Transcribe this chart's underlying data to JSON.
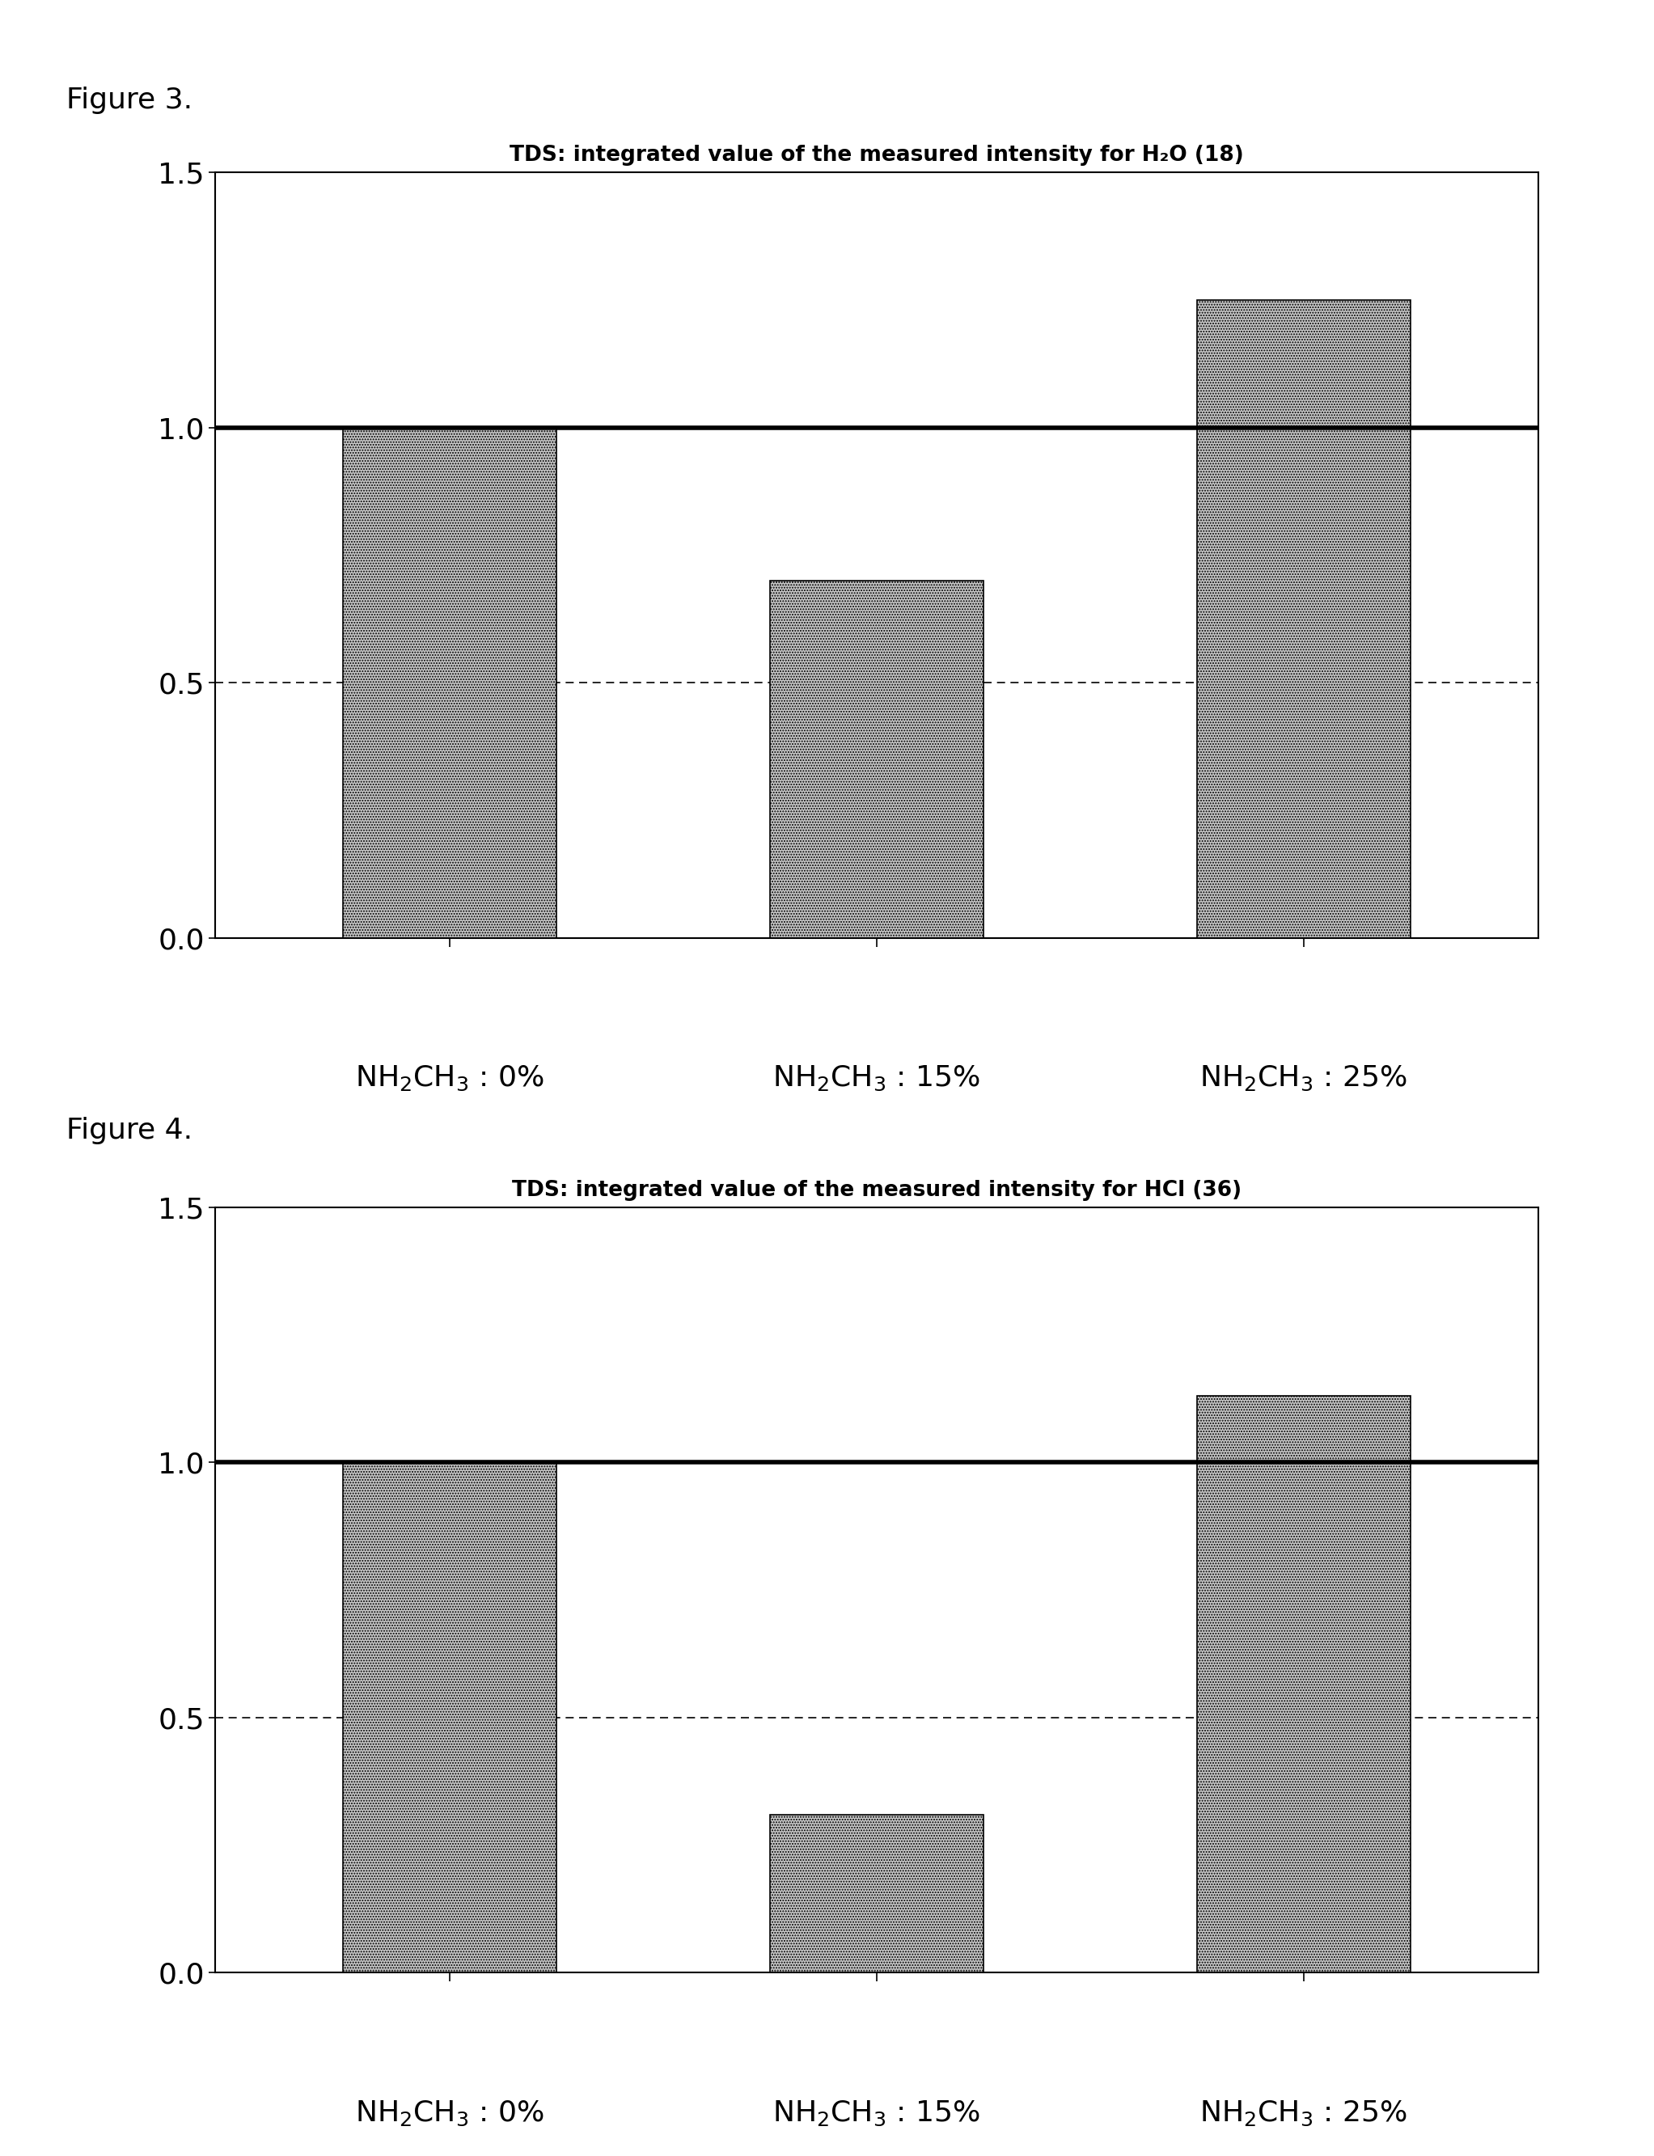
{
  "fig3": {
    "title": "TDS: integrated value of the measured intensity for H₂O (18)",
    "figure_label": "Figure 3.",
    "values": [
      1.0,
      0.7,
      1.25
    ],
    "hline": 1.0,
    "dashed_line": 0.5,
    "ylim": [
      0.0,
      1.5
    ],
    "yticks": [
      0.0,
      0.5,
      1.0,
      1.5
    ],
    "bar_color": "#c8c8c8",
    "bar_hatch": ".....",
    "bar_edgecolor": "#000000"
  },
  "fig4": {
    "title": "TDS: integrated value of the measured intensity for HCl (36)",
    "figure_label": "Figure 4.",
    "values": [
      1.0,
      0.31,
      1.13
    ],
    "hline": 1.0,
    "dashed_line": 0.5,
    "ylim": [
      0.0,
      1.5
    ],
    "yticks": [
      0.0,
      0.5,
      1.0,
      1.5
    ],
    "bar_color": "#c8c8c8",
    "bar_hatch": ".....",
    "bar_edgecolor": "#000000"
  },
  "x_labels": [
    "$\\mathregular{NH_2CH_3}$ : 0%",
    "$\\mathregular{NH_2CH_3}$ : 15%",
    "$\\mathregular{NH_2CH_3}$ : 25%"
  ],
  "background_color": "#ffffff",
  "figure_label_fontsize": 26,
  "title_fontsize": 19,
  "tick_fontsize": 26,
  "xlabel_fontsize": 26,
  "bar_width": 0.5,
  "xlim": [
    -0.55,
    2.55
  ],
  "hline_lw": 4.0,
  "dashed_lw": 1.2,
  "spine_lw": 1.5
}
